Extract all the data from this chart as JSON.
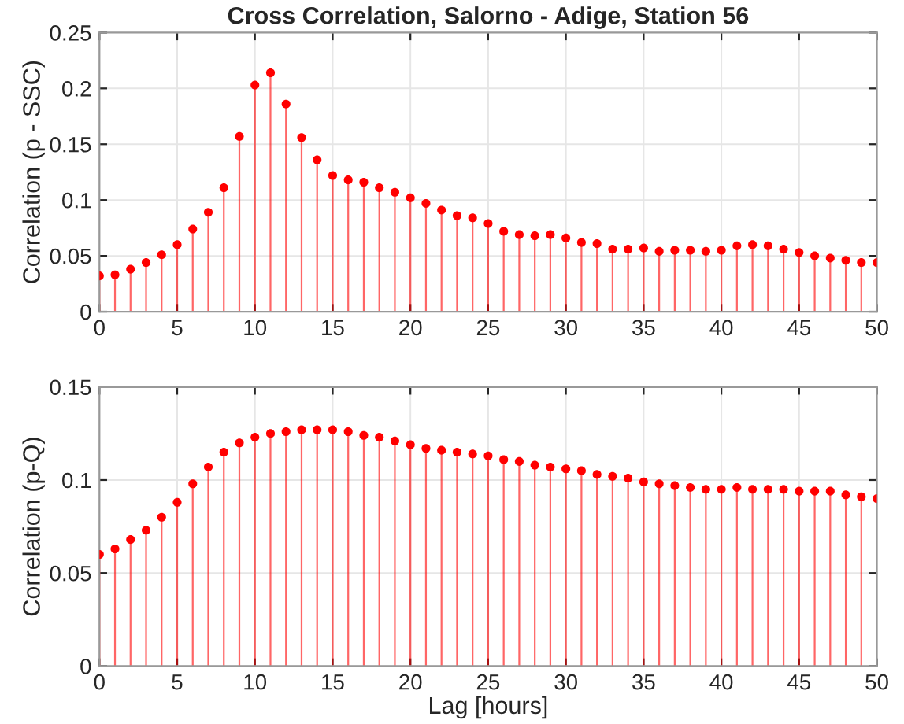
{
  "chart_data": [
    {
      "type": "lollipop",
      "title": "Cross Correlation, Salorno - Adige, Station 56",
      "ylabel": "Correlation (p - SSC)",
      "x": [
        0,
        1,
        2,
        3,
        4,
        5,
        6,
        7,
        8,
        9,
        10,
        11,
        12,
        13,
        14,
        15,
        16,
        17,
        18,
        19,
        20,
        21,
        22,
        23,
        24,
        25,
        26,
        27,
        28,
        29,
        30,
        31,
        32,
        33,
        34,
        35,
        36,
        37,
        38,
        39,
        40,
        41,
        42,
        43,
        44,
        45,
        46,
        47,
        48,
        49,
        50
      ],
      "series": [
        {
          "color": "#ff0000",
          "values": [
            0.032,
            0.033,
            0.038,
            0.044,
            0.051,
            0.06,
            0.074,
            0.089,
            0.111,
            0.157,
            0.203,
            0.214,
            0.186,
            0.156,
            0.136,
            0.122,
            0.118,
            0.116,
            0.111,
            0.107,
            0.102,
            0.097,
            0.091,
            0.086,
            0.084,
            0.079,
            0.072,
            0.069,
            0.068,
            0.069,
            0.066,
            0.062,
            0.061,
            0.056,
            0.056,
            0.057,
            0.054,
            0.055,
            0.055,
            0.054,
            0.055,
            0.059,
            0.06,
            0.059,
            0.056,
            0.053,
            0.05,
            0.048,
            0.046,
            0.044,
            0.044
          ]
        }
      ],
      "xlim": [
        0,
        50
      ],
      "xticks": [
        0,
        5,
        10,
        15,
        20,
        25,
        30,
        35,
        40,
        45,
        50
      ],
      "ylim": [
        0,
        0.25
      ],
      "yticks": [
        0,
        0.05,
        0.1,
        0.15,
        0.2,
        0.25
      ],
      "grid": true,
      "marker": "circle"
    },
    {
      "type": "lollipop",
      "xlabel": "Lag [hours]",
      "ylabel": "Correlation (p-Q)",
      "x": [
        0,
        1,
        2,
        3,
        4,
        5,
        6,
        7,
        8,
        9,
        10,
        11,
        12,
        13,
        14,
        15,
        16,
        17,
        18,
        19,
        20,
        21,
        22,
        23,
        24,
        25,
        26,
        27,
        28,
        29,
        30,
        31,
        32,
        33,
        34,
        35,
        36,
        37,
        38,
        39,
        40,
        41,
        42,
        43,
        44,
        45,
        46,
        47,
        48,
        49,
        50
      ],
      "series": [
        {
          "color": "#ff0000",
          "values": [
            0.06,
            0.063,
            0.068,
            0.073,
            0.08,
            0.088,
            0.098,
            0.107,
            0.115,
            0.12,
            0.123,
            0.125,
            0.126,
            0.127,
            0.127,
            0.127,
            0.126,
            0.124,
            0.123,
            0.121,
            0.119,
            0.117,
            0.116,
            0.115,
            0.114,
            0.113,
            0.111,
            0.11,
            0.108,
            0.107,
            0.106,
            0.105,
            0.103,
            0.102,
            0.101,
            0.099,
            0.098,
            0.097,
            0.096,
            0.095,
            0.095,
            0.096,
            0.095,
            0.095,
            0.095,
            0.094,
            0.094,
            0.094,
            0.092,
            0.091,
            0.09
          ]
        }
      ],
      "xlim": [
        0,
        50
      ],
      "xticks": [
        0,
        5,
        10,
        15,
        20,
        25,
        30,
        35,
        40,
        45,
        50
      ],
      "ylim": [
        0,
        0.15
      ],
      "yticks": [
        0,
        0.05,
        0.1,
        0.15
      ],
      "grid": true,
      "marker": "circle"
    }
  ]
}
